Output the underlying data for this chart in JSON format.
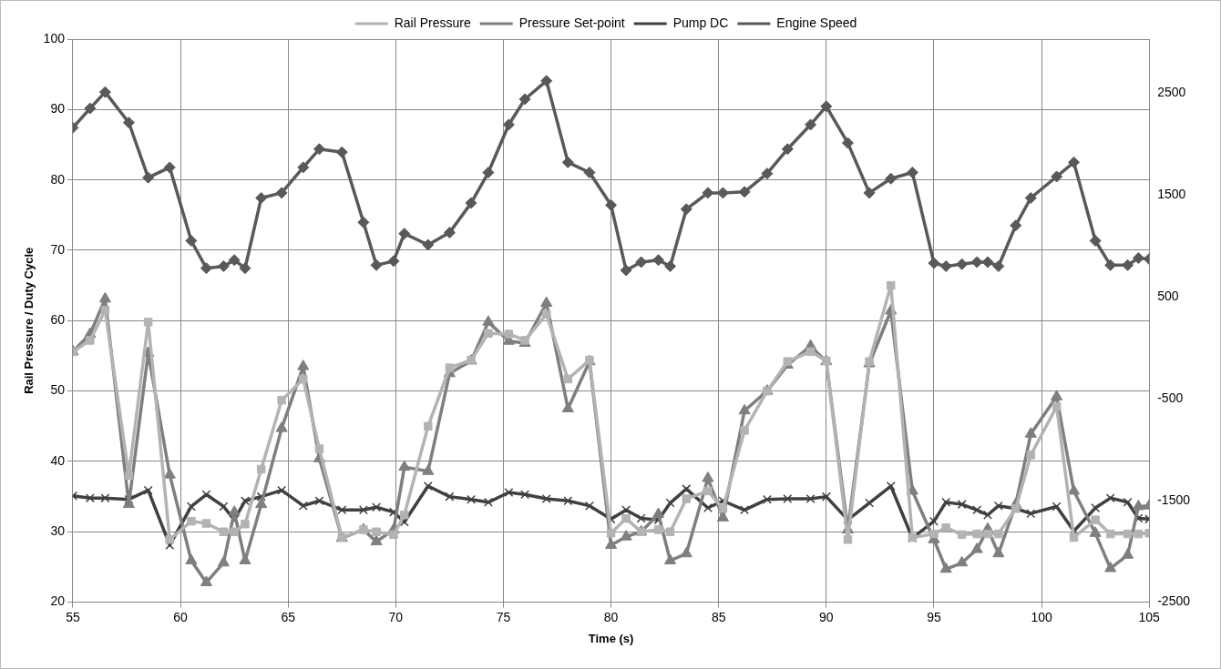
{
  "chart_data": {
    "type": "line",
    "xlabel": "Time (s)",
    "ylabel": "Rail Pressure / Duty Cycle",
    "x": [
      55,
      55.8,
      56.5,
      57.6,
      58.5,
      59.5,
      60.5,
      61.2,
      62.0,
      62.5,
      63.0,
      63.75,
      64.7,
      65.7,
      66.45,
      67.5,
      68.5,
      69.1,
      69.9,
      70.4,
      71.5,
      72.5,
      73.5,
      74.3,
      75.25,
      76.0,
      77.0,
      78.0,
      79.0,
      80.0,
      80.7,
      81.4,
      82.2,
      82.75,
      83.5,
      84.5,
      85.2,
      86.2,
      87.25,
      88.2,
      89.27,
      90.0,
      91.0,
      92.0,
      93.0,
      94.0,
      95.0,
      95.56,
      96.3,
      97.0,
      97.5,
      98.0,
      98.8,
      99.5,
      100.7,
      101.5,
      102.5,
      103.2,
      104.0,
      104.5,
      105
    ],
    "series": [
      {
        "name": "Rail Pressure",
        "color": "#b3b3b3",
        "marker": "square",
        "values": [
          55.6,
          57.2,
          61.5,
          38,
          59.8,
          28.9,
          31.5,
          31.2,
          30.0,
          30.0,
          31.1,
          38.9,
          48.7,
          51.7,
          41.8,
          29.2,
          30.3,
          30,
          29.6,
          32.4,
          45,
          53.3,
          54.4,
          58.2,
          58.1,
          57.2,
          60.9,
          51.7,
          54.4,
          29.8,
          31.9,
          30.0,
          30.3,
          30.0,
          34.7,
          35.8,
          33.3,
          44.4,
          50,
          54.2,
          55.6,
          54.3,
          28.9,
          54.2,
          65,
          29.2,
          29.7,
          30.6,
          29.6,
          29.7,
          29.7,
          29.7,
          33.3,
          40.9,
          47.8,
          29.2,
          31.7,
          29.7,
          29.7,
          29.7,
          29.8
        ]
      },
      {
        "name": "Pressure Set-point",
        "color": "#7f7f7f",
        "marker": "triangle",
        "values": [
          55.6,
          58.1,
          63.1,
          33.9,
          55.4,
          38.1,
          25.9,
          22.8,
          25.6,
          32.8,
          25.9,
          33.9,
          44.7,
          53.5,
          40.4,
          29.1,
          30.3,
          28.6,
          30.3,
          39.2,
          38.6,
          52.5,
          54.3,
          59.8,
          57.1,
          56.8,
          62.5,
          47.5,
          54.2,
          28.1,
          29.3,
          30.0,
          32.5,
          25.9,
          26.9,
          37.6,
          32,
          47.2,
          50,
          53.7,
          56.4,
          54.2,
          30.3,
          53.9,
          61.4,
          35.8,
          28.9,
          24.7,
          25.6,
          27.5,
          30.4,
          26.9,
          33.9,
          43.9,
          49.2,
          35.8,
          29.8,
          24.8,
          26.7,
          33.6,
          33.7
        ]
      },
      {
        "name": "Pump DC",
        "color": "#404040",
        "marker": "cross",
        "values": [
          35.1,
          34.8,
          34.8,
          34.6,
          35.9,
          28.1,
          33.6,
          35.3,
          33.6,
          31.7,
          34.4,
          35.0,
          35.9,
          33.7,
          34.4,
          33.1,
          33.1,
          33.5,
          32.8,
          31.4,
          36.5,
          35,
          34.6,
          34.2,
          35.6,
          35.3,
          34.7,
          34.4,
          33.7,
          31.8,
          33.1,
          31.9,
          31.7,
          34.1,
          36.1,
          33.4,
          34.4,
          33.1,
          34.6,
          34.7,
          34.7,
          35,
          31.7,
          34.1,
          36.5,
          29.1,
          31.5,
          34.2,
          33.9,
          33.1,
          32.4,
          33.7,
          33.3,
          32.6,
          33.6,
          30.1,
          33.4,
          34.8,
          34.2,
          31.9,
          31.8
        ]
      },
      {
        "name": "Engine Speed",
        "color": "#595959",
        "marker": "diamond",
        "axis": "y2",
        "values": [
          2160,
          2350,
          2510,
          2210,
          1670,
          1770,
          1050,
          780,
          800,
          860,
          780,
          1470,
          1520,
          1770,
          1950,
          1920,
          1230,
          810,
          850,
          1120,
          1010,
          1130,
          1420,
          1720,
          2190,
          2440,
          2620,
          1820,
          1720,
          1400,
          760,
          840,
          860,
          800,
          1360,
          1520,
          1520,
          1530,
          1710,
          1950,
          2190,
          2370,
          2010,
          1520,
          1660,
          1720,
          830,
          800,
          820,
          840,
          840,
          800,
          1200,
          1470,
          1680,
          1820,
          1050,
          810,
          810,
          880,
          870
        ]
      }
    ],
    "xlim": [
      55,
      105
    ],
    "xticks": [
      55,
      60,
      65,
      70,
      75,
      80,
      85,
      90,
      95,
      100,
      105
    ],
    "ylim": [
      20,
      100
    ],
    "yticks": [
      20,
      30,
      40,
      50,
      60,
      70,
      80,
      90,
      100
    ],
    "y2lim": [
      -2500,
      3030
    ],
    "y2ticks": [
      -2500,
      -1500,
      -500,
      500,
      1500,
      2500
    ],
    "grid": true,
    "legend": "top",
    "line_style": "solid"
  }
}
